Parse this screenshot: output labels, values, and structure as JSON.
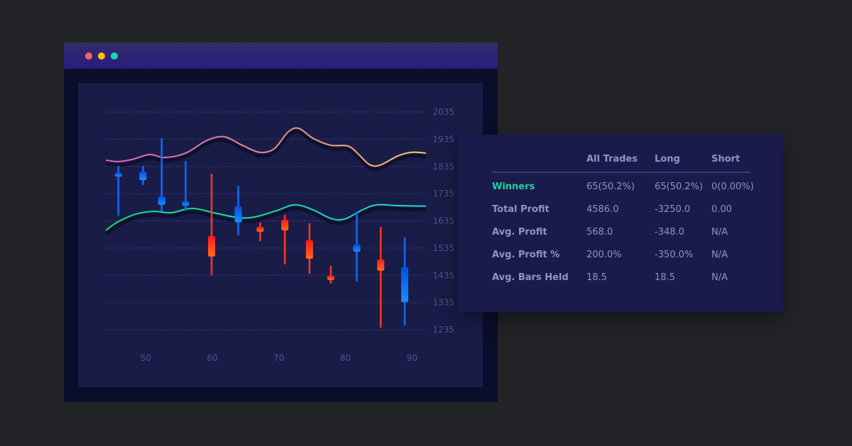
{
  "window": {
    "controls": [
      {
        "name": "close",
        "color": "#ff5f5f"
      },
      {
        "name": "minimize",
        "color": "#ffc107"
      },
      {
        "name": "maximize",
        "color": "#1bd6b0"
      }
    ]
  },
  "chart_data": {
    "type": "candlestick",
    "xlim": [
      44,
      92.2
    ],
    "ylim": [
      1235,
      2035
    ],
    "x_ticks": [
      50,
      60,
      70,
      80,
      90
    ],
    "y_ticks": [
      2035,
      1935,
      1835,
      1735,
      1635,
      1535,
      1435,
      1335,
      1235
    ],
    "grid": true,
    "colors": {
      "up": "#0a6cff",
      "down": "#ff3a1a",
      "grid": "#3a3f78",
      "tick": "#4f5390"
    },
    "candles": [
      {
        "x": 46,
        "high": 1837,
        "low": 1655,
        "open": 1805,
        "close": 1811,
        "direction": "up"
      },
      {
        "x": 49.7,
        "high": 1837,
        "low": 1767,
        "open": 1785,
        "close": 1816,
        "direction": "up"
      },
      {
        "x": 52.5,
        "high": 1939,
        "low": 1670,
        "open": 1694,
        "close": 1725,
        "direction": "up"
      },
      {
        "x": 56.1,
        "high": 1855,
        "low": 1673,
        "open": 1691,
        "close": 1707,
        "direction": "up"
      },
      {
        "x": 60,
        "high": 1808,
        "low": 1436,
        "open": 1579,
        "close": 1504,
        "direction": "down"
      },
      {
        "x": 64,
        "high": 1764,
        "low": 1582,
        "open": 1629,
        "close": 1689,
        "direction": "up"
      },
      {
        "x": 67.3,
        "high": 1629,
        "low": 1561,
        "open": 1613,
        "close": 1595,
        "direction": "down"
      },
      {
        "x": 71,
        "high": 1657,
        "low": 1475,
        "open": 1639,
        "close": 1600,
        "direction": "down"
      },
      {
        "x": 74.7,
        "high": 1626,
        "low": 1441,
        "open": 1564,
        "close": 1496,
        "direction": "down"
      },
      {
        "x": 77.9,
        "high": 1470,
        "low": 1405,
        "open": 1433,
        "close": 1418,
        "direction": "down"
      },
      {
        "x": 81.8,
        "high": 1665,
        "low": 1413,
        "open": 1522,
        "close": 1548,
        "direction": "up"
      },
      {
        "x": 85.4,
        "high": 1613,
        "low": 1243,
        "open": 1493,
        "close": 1452,
        "direction": "down"
      },
      {
        "x": 89,
        "high": 1574,
        "low": 1251,
        "open": 1337,
        "close": 1465,
        "direction": "up"
      }
    ],
    "lines": [
      {
        "colors": [
          "#e05ec4",
          "#e38a86",
          "#f2d35a"
        ],
        "points": [
          [
            44.1,
            1858
          ],
          [
            46.0,
            1853
          ],
          [
            48.1,
            1861
          ],
          [
            50.7,
            1879
          ],
          [
            52.9,
            1868
          ],
          [
            56.1,
            1884
          ],
          [
            59.3,
            1931
          ],
          [
            61.9,
            1944
          ],
          [
            64.6,
            1913
          ],
          [
            67.2,
            1887
          ],
          [
            69.4,
            1900
          ],
          [
            71.5,
            1962
          ],
          [
            73.1,
            1975
          ],
          [
            75.2,
            1939
          ],
          [
            77.9,
            1913
          ],
          [
            80.5,
            1910
          ],
          [
            82.1,
            1879
          ],
          [
            83.7,
            1842
          ],
          [
            85.3,
            1840
          ],
          [
            88.0,
            1874
          ],
          [
            90.1,
            1887
          ],
          [
            92.2,
            1884
          ]
        ]
      },
      {
        "colors": [
          "#12e07a",
          "#1adba0",
          "#22d4c8"
        ],
        "points": [
          [
            44.1,
            1600
          ],
          [
            45.9,
            1631
          ],
          [
            48.6,
            1660
          ],
          [
            51.3,
            1670
          ],
          [
            53.9,
            1665
          ],
          [
            57.1,
            1681
          ],
          [
            60.3,
            1665
          ],
          [
            64.0,
            1647
          ],
          [
            66.6,
            1650
          ],
          [
            69.8,
            1673
          ],
          [
            72.5,
            1694
          ],
          [
            75.2,
            1676
          ],
          [
            77.9,
            1644
          ],
          [
            80.0,
            1642
          ],
          [
            82.7,
            1676
          ],
          [
            84.8,
            1694
          ],
          [
            88.0,
            1691
          ],
          [
            92.2,
            1689
          ]
        ]
      }
    ]
  },
  "stats": {
    "headers": [
      "",
      "All Trades",
      "Long",
      "Short"
    ],
    "highlight_color": "#1fd3a0",
    "rows": [
      {
        "label": "Winners",
        "values": [
          "65(50.2%)",
          "65(50.2%)",
          "0(0.00%)"
        ],
        "highlight": true
      },
      {
        "label": "Total Profit",
        "values": [
          "4586.0",
          "-3250.0",
          "0.00"
        ]
      },
      {
        "label": "Avg. Profit",
        "values": [
          "568.0",
          "-348.0",
          "N/A"
        ]
      },
      {
        "label": "Avg. Profit %",
        "values": [
          "200.0%",
          "-350.0%",
          "N/A"
        ]
      },
      {
        "label": "Avg. Bars Held",
        "values": [
          "18.5",
          "18.5",
          "N/A"
        ]
      }
    ]
  }
}
